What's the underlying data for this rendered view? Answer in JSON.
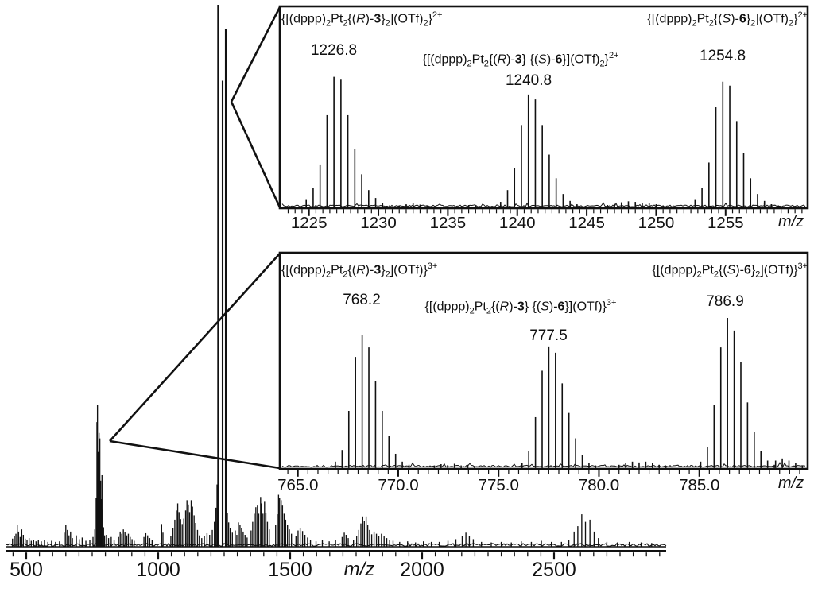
{
  "figure": {
    "background": "#ffffff",
    "ink_color": "#111111",
    "description_visible_text_only": true
  },
  "chart_data": {
    "main_spectrum": {
      "type": "line",
      "subtype": "mass-spectrum-sticks",
      "xlabel": "m/z",
      "ylabel": "",
      "y_axis_shown": false,
      "x_range": [
        425,
        2925
      ],
      "ylim": [
        0,
        1
      ],
      "grid": false,
      "minor_tick_step": 50,
      "major_ticks": [
        500,
        1000,
        1500,
        2000,
        2500
      ],
      "tick_labels": [
        "500",
        "1000",
        "1500",
        "2000",
        "2500"
      ],
      "full_scale_peak_mz": 1227,
      "noise_floor_rel": 0.006,
      "peaks": [
        [
          448,
          0.015
        ],
        [
          455,
          0.02
        ],
        [
          461,
          0.024
        ],
        [
          466,
          0.04
        ],
        [
          471,
          0.028
        ],
        [
          477,
          0.018
        ],
        [
          483,
          0.032
        ],
        [
          489,
          0.022
        ],
        [
          496,
          0.015
        ],
        [
          503,
          0.012
        ],
        [
          511,
          0.016
        ],
        [
          519,
          0.011
        ],
        [
          528,
          0.013
        ],
        [
          537,
          0.01
        ],
        [
          546,
          0.013
        ],
        [
          557,
          0.01
        ],
        [
          569,
          0.012
        ],
        [
          582,
          0.009
        ],
        [
          596,
          0.011
        ],
        [
          611,
          0.009
        ],
        [
          626,
          0.01
        ],
        [
          644,
          0.026
        ],
        [
          650,
          0.04
        ],
        [
          656,
          0.031
        ],
        [
          662,
          0.021
        ],
        [
          668,
          0.028
        ],
        [
          675,
          0.016
        ],
        [
          690,
          0.021
        ],
        [
          701,
          0.014
        ],
        [
          712,
          0.017
        ],
        [
          726,
          0.011
        ],
        [
          741,
          0.013
        ],
        [
          753,
          0.018
        ],
        [
          760,
          0.032
        ],
        [
          765,
          0.09
        ],
        [
          768,
          0.23
        ],
        [
          770,
          0.262
        ],
        [
          773,
          0.175
        ],
        [
          776,
          0.21
        ],
        [
          779,
          0.2
        ],
        [
          782,
          0.122
        ],
        [
          785,
          0.088
        ],
        [
          787,
          0.132
        ],
        [
          790,
          0.068
        ],
        [
          793,
          0.036
        ],
        [
          797,
          0.021
        ],
        [
          804,
          0.022
        ],
        [
          812,
          0.016
        ],
        [
          822,
          0.018
        ],
        [
          833,
          0.012
        ],
        [
          850,
          0.018
        ],
        [
          856,
          0.028
        ],
        [
          862,
          0.024
        ],
        [
          868,
          0.032
        ],
        [
          874,
          0.027
        ],
        [
          881,
          0.021
        ],
        [
          887,
          0.024
        ],
        [
          894,
          0.018
        ],
        [
          901,
          0.014
        ],
        [
          909,
          0.011
        ],
        [
          946,
          0.018
        ],
        [
          953,
          0.025
        ],
        [
          960,
          0.021
        ],
        [
          968,
          0.016
        ],
        [
          977,
          0.012
        ],
        [
          1013,
          0.042
        ],
        [
          1018,
          0.026
        ],
        [
          1048,
          0.02
        ],
        [
          1056,
          0.035
        ],
        [
          1063,
          0.05
        ],
        [
          1069,
          0.067
        ],
        [
          1074,
          0.08
        ],
        [
          1079,
          0.064
        ],
        [
          1085,
          0.051
        ],
        [
          1091,
          0.042
        ],
        [
          1097,
          0.052
        ],
        [
          1104,
          0.067
        ],
        [
          1109,
          0.086
        ],
        [
          1114,
          0.078
        ],
        [
          1119,
          0.064
        ],
        [
          1125,
          0.086
        ],
        [
          1130,
          0.074
        ],
        [
          1136,
          0.058
        ],
        [
          1142,
          0.044
        ],
        [
          1149,
          0.031
        ],
        [
          1156,
          0.021
        ],
        [
          1165,
          0.016
        ],
        [
          1175,
          0.02
        ],
        [
          1185,
          0.025
        ],
        [
          1195,
          0.022
        ],
        [
          1205,
          0.031
        ],
        [
          1213,
          0.046
        ],
        [
          1219,
          0.072
        ],
        [
          1223,
          0.115
        ],
        [
          1227,
          1.0
        ],
        [
          1244,
          0.86
        ],
        [
          1256,
          0.955
        ],
        [
          1262,
          0.062
        ],
        [
          1267,
          0.045
        ],
        [
          1273,
          0.034
        ],
        [
          1281,
          0.026
        ],
        [
          1292,
          0.03
        ],
        [
          1298,
          0.022
        ],
        [
          1304,
          0.045
        ],
        [
          1310,
          0.04
        ],
        [
          1316,
          0.034
        ],
        [
          1322,
          0.028
        ],
        [
          1329,
          0.022
        ],
        [
          1337,
          0.017
        ],
        [
          1352,
          0.03
        ],
        [
          1358,
          0.046
        ],
        [
          1364,
          0.061
        ],
        [
          1370,
          0.073
        ],
        [
          1376,
          0.076
        ],
        [
          1381,
          0.061
        ],
        [
          1388,
          0.092
        ],
        [
          1392,
          0.08
        ],
        [
          1397,
          0.061
        ],
        [
          1403,
          0.083
        ],
        [
          1408,
          0.062
        ],
        [
          1414,
          0.046
        ],
        [
          1421,
          0.032
        ],
        [
          1445,
          0.04
        ],
        [
          1451,
          0.06
        ],
        [
          1456,
          0.096
        ],
        [
          1460,
          0.09
        ],
        [
          1466,
          0.086
        ],
        [
          1471,
          0.076
        ],
        [
          1477,
          0.061
        ],
        [
          1483,
          0.05
        ],
        [
          1490,
          0.04
        ],
        [
          1497,
          0.032
        ],
        [
          1505,
          0.024
        ],
        [
          1522,
          0.02
        ],
        [
          1530,
          0.03
        ],
        [
          1538,
          0.035
        ],
        [
          1547,
          0.029
        ],
        [
          1556,
          0.022
        ],
        [
          1566,
          0.017
        ],
        [
          1577,
          0.013
        ],
        [
          1598,
          0.01
        ],
        [
          1622,
          0.012
        ],
        [
          1648,
          0.01
        ],
        [
          1672,
          0.013
        ],
        [
          1697,
          0.018
        ],
        [
          1705,
          0.026
        ],
        [
          1712,
          0.022
        ],
        [
          1720,
          0.016
        ],
        [
          1740,
          0.013
        ],
        [
          1752,
          0.02
        ],
        [
          1760,
          0.031
        ],
        [
          1768,
          0.043
        ],
        [
          1775,
          0.056
        ],
        [
          1781,
          0.047
        ],
        [
          1788,
          0.056
        ],
        [
          1794,
          0.041
        ],
        [
          1801,
          0.031
        ],
        [
          1809,
          0.023
        ],
        [
          1818,
          0.028
        ],
        [
          1827,
          0.024
        ],
        [
          1836,
          0.02
        ],
        [
          1846,
          0.024
        ],
        [
          1856,
          0.019
        ],
        [
          1866,
          0.016
        ],
        [
          1877,
          0.013
        ],
        [
          1890,
          0.011
        ],
        [
          1915,
          0.009
        ],
        [
          1945,
          0.01
        ],
        [
          1975,
          0.008
        ],
        [
          2005,
          0.01
        ],
        [
          2035,
          0.009
        ],
        [
          2065,
          0.009
        ],
        [
          2098,
          0.011
        ],
        [
          2128,
          0.014
        ],
        [
          2152,
          0.02
        ],
        [
          2166,
          0.026
        ],
        [
          2179,
          0.02
        ],
        [
          2194,
          0.014
        ],
        [
          2225,
          0.009
        ],
        [
          2262,
          0.008
        ],
        [
          2300,
          0.009
        ],
        [
          2338,
          0.008
        ],
        [
          2376,
          0.01
        ],
        [
          2414,
          0.009
        ],
        [
          2452,
          0.011
        ],
        [
          2490,
          0.009
        ],
        [
          2528,
          0.009
        ],
        [
          2556,
          0.012
        ],
        [
          2576,
          0.028
        ],
        [
          2590,
          0.038
        ],
        [
          2605,
          0.06
        ],
        [
          2619,
          0.046
        ],
        [
          2636,
          0.05
        ],
        [
          2652,
          0.028
        ],
        [
          2668,
          0.016
        ],
        [
          2700,
          0.009
        ],
        [
          2740,
          0.008
        ],
        [
          2785,
          0.009
        ],
        [
          2830,
          0.008
        ],
        [
          2870,
          0.007
        ]
      ]
    },
    "inset_top_2plus": {
      "type": "line",
      "subtype": "mass-spectrum-isotope-patterns",
      "xlabel": "m/z",
      "y_axis_shown": false,
      "x_range": [
        1222.9,
        1260.9
      ],
      "ylim": [
        0,
        1
      ],
      "minor_tick_step": 0.5,
      "major_ticks": [
        1225,
        1230,
        1235,
        1240,
        1245,
        1250,
        1255
      ],
      "tick_labels": [
        "1225",
        "1230",
        "1235",
        "1240",
        "1245",
        "1250",
        "1255"
      ],
      "magnified_from_mz": 1240,
      "clusters": [
        {
          "label": "1226.8",
          "apex_mz": 1226.8,
          "assignment_html": "{[(dppp)<sub>2</sub>Pt<sub>2</sub>{(<i>R</i>)-<b>3</b>}<sub>2</sub>](OTf)<sub>2</sub>}<sup>2+</sup>",
          "start_mz": 1224.8,
          "spacing": 0.5,
          "profile": [
            0.04,
            0.1,
            0.22,
            0.47,
            0.665,
            0.65,
            0.47,
            0.3,
            0.17,
            0.09,
            0.05,
            0.025,
            0.012
          ]
        },
        {
          "label": "1240.8",
          "apex_mz": 1240.8,
          "assignment_html": "{[(dppp)<sub>2</sub>Pt<sub>2</sub>{(<i>R</i>)-<b>3</b>} {(<i>S</i>)-<b>6</b>}](OTf)<sub>2</sub>}<sup>2+</sup>",
          "start_mz": 1238.8,
          "spacing": 0.5,
          "profile": [
            0.03,
            0.09,
            0.2,
            0.42,
            0.575,
            0.55,
            0.42,
            0.27,
            0.15,
            0.07,
            0.035,
            0.018
          ]
        },
        {
          "label": "1254.8",
          "apex_mz": 1254.8,
          "assignment_html": "{[(dppp)<sub>2</sub>Pt<sub>2</sub>{(<i>S</i>)-<b>6</b>}<sub>2</sub>](OTf)<sub>2</sub>}<sup>2+</sup>",
          "start_mz": 1252.8,
          "spacing": 0.5,
          "profile": [
            0.04,
            0.1,
            0.23,
            0.51,
            0.64,
            0.62,
            0.44,
            0.28,
            0.15,
            0.07,
            0.035,
            0.018
          ]
        }
      ],
      "noise_clusters": [
        {
          "start_mz": 1231.5,
          "spacing": 0.5,
          "profile": [
            0.012,
            0.018,
            0.022,
            0.016,
            0.01
          ]
        },
        {
          "start_mz": 1236.0,
          "spacing": 0.5,
          "profile": [
            0.01,
            0.014,
            0.01
          ]
        },
        {
          "start_mz": 1246.5,
          "spacing": 0.5,
          "profile": [
            0.014,
            0.02,
            0.028,
            0.033,
            0.03,
            0.022,
            0.025,
            0.018,
            0.012
          ]
        },
        {
          "start_mz": 1257.8,
          "spacing": 0.5,
          "profile": [
            0.025,
            0.018,
            0.012
          ]
        }
      ]
    },
    "inset_bottom_3plus": {
      "type": "line",
      "subtype": "mass-spectrum-isotope-patterns",
      "xlabel": "m/z",
      "y_axis_shown": false,
      "x_range": [
        764.1,
        790.4
      ],
      "ylim": [
        0,
        1
      ],
      "minor_tick_step": 0.5,
      "major_ticks": [
        765,
        770,
        775,
        780,
        785
      ],
      "tick_labels": [
        "765.0",
        "770.0",
        "775.0",
        "780.0",
        "785.0"
      ],
      "magnified_from_mz": 777,
      "clusters": [
        {
          "label": "768.2",
          "apex_mz": 768.2,
          "assignment_html": "{[(dppp)<sub>2</sub>Pt<sub>2</sub>{(<i>R</i>)-<b>3</b>}<sub>2</sub>](OTf)}<sup>3+</sup>",
          "start_mz": 766.87,
          "spacing": 0.3333,
          "profile": [
            0.03,
            0.085,
            0.27,
            0.525,
            0.63,
            0.57,
            0.41,
            0.27,
            0.15,
            0.067,
            0.03,
            0.015
          ]
        },
        {
          "label": "777.5",
          "apex_mz": 777.5,
          "assignment_html": "{[(dppp)<sub>2</sub>Pt<sub>2</sub>{(<i>R</i>)-<b>3</b>} {(<i>S</i>)-<b>6</b>}](OTf)}<sup>3+</sup>",
          "start_mz": 776.17,
          "spacing": 0.3333,
          "profile": [
            0.025,
            0.08,
            0.24,
            0.46,
            0.575,
            0.545,
            0.4,
            0.26,
            0.14,
            0.06,
            0.025,
            0.012
          ]
        },
        {
          "label": "786.9",
          "apex_mz": 786.9,
          "assignment_html": "{[(dppp)<sub>2</sub>Pt<sub>2</sub>{(<i>S</i>)-<b>6</b>}<sub>2</sub>](OTf)}<sup>3+</sup>",
          "start_mz": 785.07,
          "spacing": 0.3333,
          "profile": [
            0.03,
            0.1,
            0.3,
            0.57,
            0.71,
            0.65,
            0.5,
            0.31,
            0.17,
            0.08,
            0.035,
            0.015
          ]
        }
      ],
      "noise_clusters": [
        {
          "start_mz": 771.8,
          "spacing": 0.3333,
          "profile": [
            0.012,
            0.018,
            0.014,
            0.02,
            0.012,
            0.015,
            0.01
          ]
        },
        {
          "start_mz": 781.0,
          "spacing": 0.3333,
          "profile": [
            0.015,
            0.022,
            0.03,
            0.026,
            0.03,
            0.022,
            0.015,
            0.01
          ]
        },
        {
          "start_mz": 788.8,
          "spacing": 0.3333,
          "profile": [
            0.035,
            0.045,
            0.035,
            0.022,
            0.012
          ]
        }
      ]
    }
  }
}
